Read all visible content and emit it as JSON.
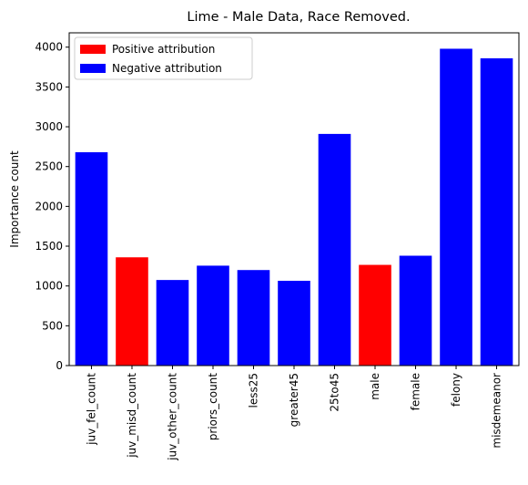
{
  "chart_data": {
    "type": "bar",
    "title": "Lime - Male Data, Race Removed.",
    "xlabel": "",
    "ylabel": "Importance count",
    "categories": [
      "juv_fel_count",
      "juv_misd_count",
      "juv_other_count",
      "priors_count",
      "less25",
      "greater45",
      "25to45",
      "male",
      "female",
      "felony",
      "misdemeanor"
    ],
    "values": [
      2680,
      1360,
      1075,
      1255,
      1200,
      1065,
      2910,
      1265,
      1380,
      3980,
      3860
    ],
    "attribution": [
      "negative",
      "positive",
      "negative",
      "negative",
      "negative",
      "negative",
      "negative",
      "positive",
      "negative",
      "negative",
      "negative"
    ],
    "ylim": [
      0,
      4180
    ],
    "yticks": [
      0,
      500,
      1000,
      1500,
      2000,
      2500,
      3000,
      3500,
      4000
    ],
    "grid": false,
    "legend": {
      "placement": "top-left",
      "entries": [
        {
          "label": "Positive attribution",
          "key": "positive",
          "color": "#ff0000"
        },
        {
          "label": "Negative attribution",
          "key": "negative",
          "color": "#0000ff"
        }
      ]
    },
    "colors": {
      "positive": "#ff0000",
      "negative": "#0000ff"
    }
  }
}
